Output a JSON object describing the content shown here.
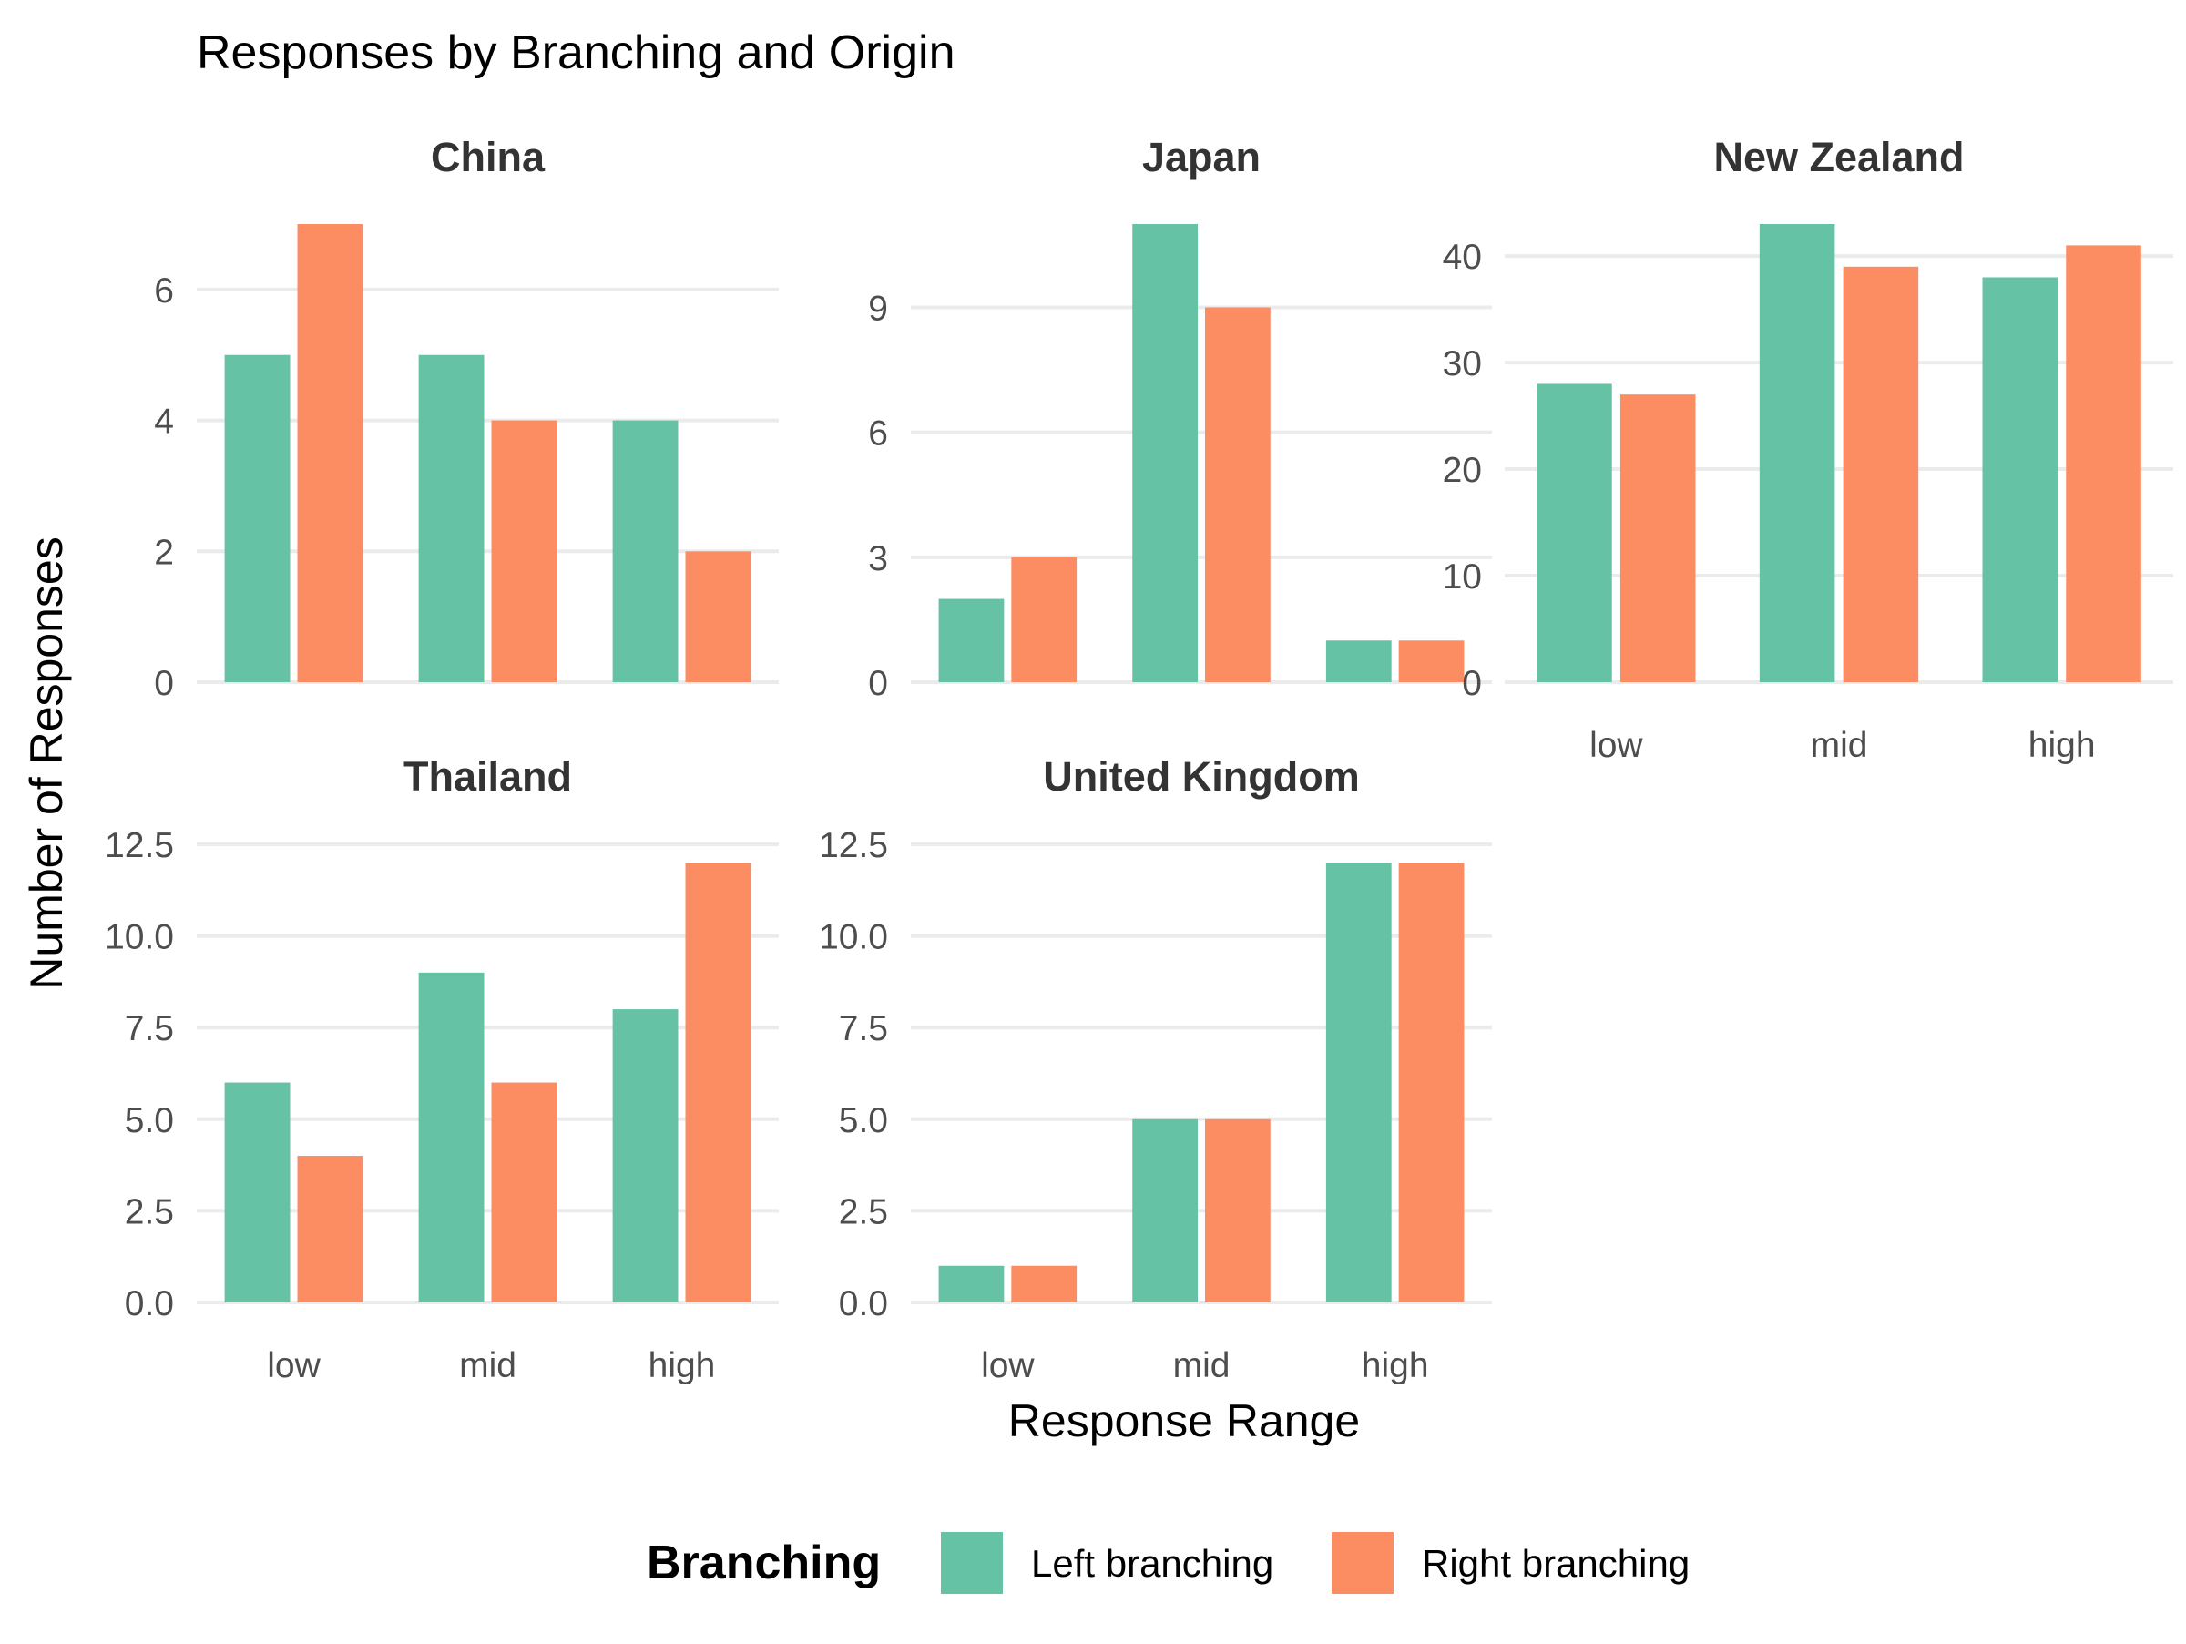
{
  "chart_data": {
    "type": "bar",
    "title": "Responses by Branching and Origin",
    "xlabel": "Response Range",
    "ylabel": "Number of Responses",
    "categories": [
      "low",
      "mid",
      "high"
    ],
    "colors": {
      "Left branching": "#66c2a5",
      "Right branching": "#fc8d62"
    },
    "legend": {
      "title": "Branching",
      "position": "bottom",
      "entries": [
        "Left branching",
        "Right branching"
      ]
    },
    "grid": true,
    "panels": [
      {
        "name": "China",
        "ylim": [
          0,
          7
        ],
        "yticks": [
          "0",
          "2",
          "4",
          "6"
        ],
        "series": [
          {
            "name": "Left branching",
            "values": [
              5,
              5,
              4
            ]
          },
          {
            "name": "Right branching",
            "values": [
              7,
              4,
              2
            ]
          }
        ]
      },
      {
        "name": "Japan",
        "ylim": [
          0,
          11
        ],
        "yticks": [
          "0",
          "3",
          "6",
          "9"
        ],
        "series": [
          {
            "name": "Left branching",
            "values": [
              2,
              11,
              1
            ]
          },
          {
            "name": "Right branching",
            "values": [
              3,
              9,
              1
            ]
          }
        ]
      },
      {
        "name": "New Zealand",
        "ylim": [
          0,
          43
        ],
        "yticks": [
          "0",
          "10",
          "20",
          "30",
          "40"
        ],
        "series": [
          {
            "name": "Left branching",
            "values": [
              28,
              43,
              38
            ]
          },
          {
            "name": "Right branching",
            "values": [
              27,
              39,
              41
            ]
          }
        ]
      },
      {
        "name": "Thailand",
        "ylim": [
          0,
          12.5
        ],
        "yticks": [
          "0.0",
          "2.5",
          "5.0",
          "7.5",
          "10.0",
          "12.5"
        ],
        "series": [
          {
            "name": "Left branching",
            "values": [
              6,
              9,
              8
            ]
          },
          {
            "name": "Right branching",
            "values": [
              4,
              6,
              12
            ]
          }
        ]
      },
      {
        "name": "United Kingdom",
        "ylim": [
          0,
          12.5
        ],
        "yticks": [
          "0.0",
          "2.5",
          "5.0",
          "7.5",
          "10.0",
          "12.5"
        ],
        "series": [
          {
            "name": "Left branching",
            "values": [
              1,
              5,
              12
            ]
          },
          {
            "name": "Right branching",
            "values": [
              1,
              5,
              12
            ]
          }
        ]
      }
    ]
  }
}
